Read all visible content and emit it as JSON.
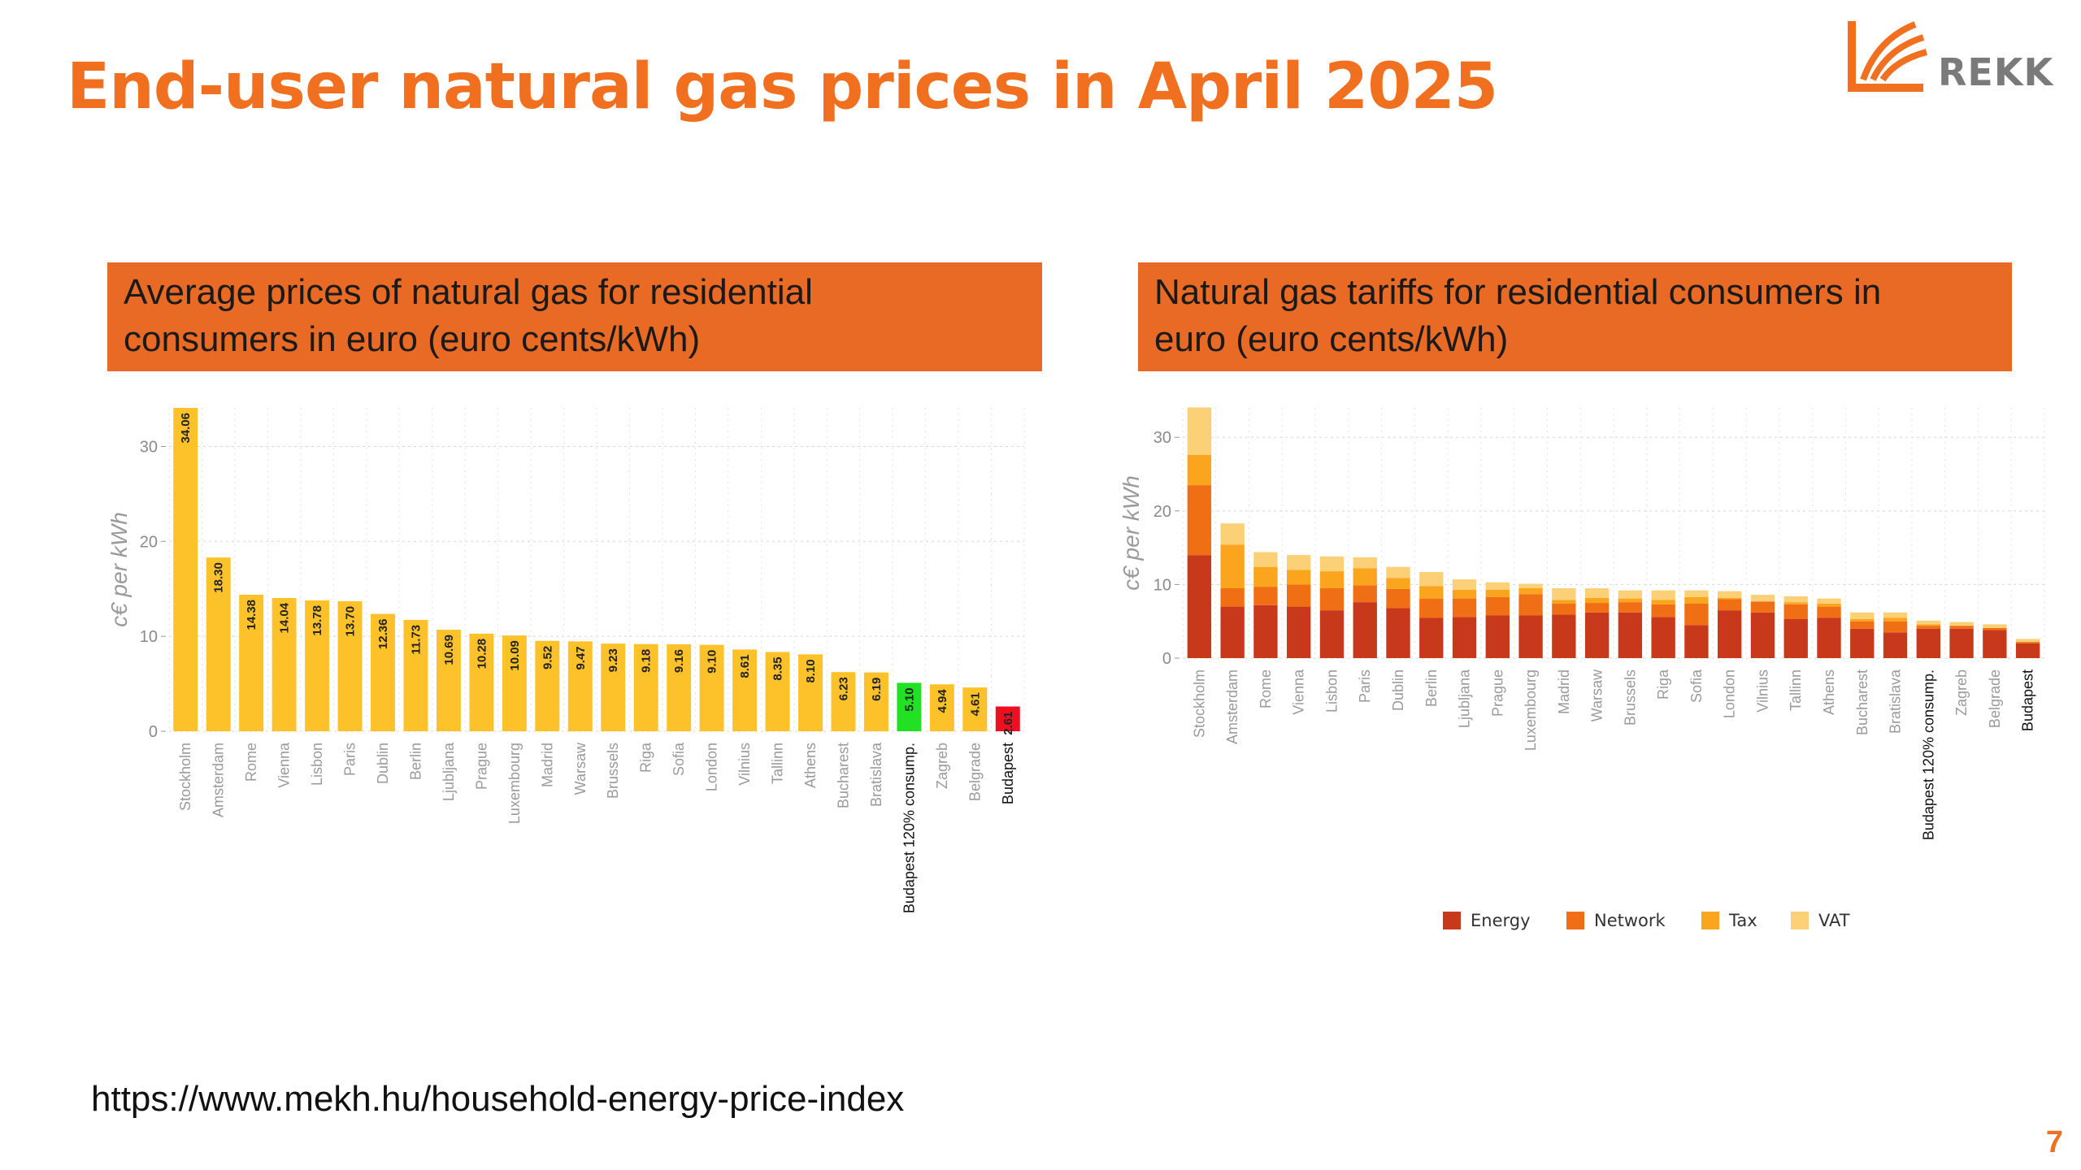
{
  "title": "End-user natural gas prices in April 2025",
  "logo": {
    "text": "REKK",
    "icon": "rekk-logo-icon"
  },
  "source_url": "https://www.mekh.hu/household-energy-price-index",
  "page_number": "7",
  "colors": {
    "title": "#f07020",
    "banner": "#e86a24",
    "bar_default": "#fdc22a",
    "bar_highlight_green": "#22e022",
    "bar_highlight_red": "#ee1020",
    "energy": "#c8381a",
    "network": "#f06e14",
    "tax": "#fba41e",
    "vat": "#fcd076"
  },
  "left_panel": {
    "header_line1": "Average prices of natural gas for residential",
    "header_line2": "consumers in euro (euro cents/kWh)"
  },
  "right_panel": {
    "header_line1": "Natural gas tariffs for residential consumers in",
    "header_line2": "euro (euro cents/kWh)"
  },
  "chart_data": [
    {
      "type": "bar",
      "ylabel": "c€ per kWh",
      "ylim": [
        0,
        34.06
      ],
      "yticks": [
        0,
        10,
        20,
        30
      ],
      "grid": true,
      "categories": [
        "Stockholm",
        "Amsterdam",
        "Rome",
        "Vienna",
        "Lisbon",
        "Paris",
        "Dublin",
        "Berlin",
        "Ljubljana",
        "Prague",
        "Luxembourg",
        "Madrid",
        "Warsaw",
        "Brussels",
        "Riga",
        "Sofia",
        "London",
        "Vilnius",
        "Tallinn",
        "Athens",
        "Bucharest",
        "Bratislava",
        "Budapest 120% consump.",
        "Zagreb",
        "Belgrade",
        "Budapest"
      ],
      "values": [
        34.06,
        18.3,
        14.38,
        14.04,
        13.78,
        13.7,
        12.36,
        11.73,
        10.69,
        10.28,
        10.09,
        9.52,
        9.47,
        9.23,
        9.18,
        9.16,
        9.1,
        8.61,
        8.35,
        8.1,
        6.23,
        6.19,
        5.1,
        4.94,
        4.61,
        2.61
      ],
      "value_labels": [
        "34.06",
        "18.30",
        "14.38",
        "14.04",
        "13.78",
        "13.70",
        "12.36",
        "11.73",
        "10.69",
        "10.28",
        "10.09",
        "9.52",
        "9.47",
        "9.23",
        "9.18",
        "9.16",
        "9.10",
        "8.61",
        "8.35",
        "8.10",
        "6.23",
        "6.19",
        "5.10",
        "4.94",
        "4.61",
        "2.61"
      ],
      "highlight": {
        "Budapest 120% consump.": "green",
        "Budapest": "red"
      }
    },
    {
      "type": "bar",
      "stacked": true,
      "ylabel": "c€ per kWh",
      "ylim": [
        0,
        34
      ],
      "yticks": [
        0,
        10,
        20,
        30
      ],
      "grid": true,
      "legend_position": "bottom",
      "categories": [
        "Stockholm",
        "Amsterdam",
        "Rome",
        "Vienna",
        "Lisbon",
        "Paris",
        "Dublin",
        "Berlin",
        "Ljubljana",
        "Prague",
        "Luxembourg",
        "Madrid",
        "Warsaw",
        "Brussels",
        "Riga",
        "Sofia",
        "London",
        "Vilnius",
        "Tallinn",
        "Athens",
        "Bucharest",
        "Bratislava",
        "Budapest 120% consump.",
        "Zagreb",
        "Belgrade",
        "Budapest"
      ],
      "series": [
        {
          "name": "Energy",
          "values": [
            14.0,
            7.0,
            7.2,
            7.0,
            6.5,
            7.6,
            6.8,
            5.5,
            5.6,
            5.8,
            5.8,
            5.9,
            6.2,
            6.2,
            5.6,
            4.5,
            6.5,
            6.2,
            5.3,
            5.5,
            4.0,
            3.5,
            4.0,
            4.0,
            3.8,
            2.0
          ]
        },
        {
          "name": "Network",
          "values": [
            9.5,
            2.5,
            2.5,
            3.0,
            3.0,
            2.3,
            2.6,
            2.6,
            2.5,
            2.5,
            2.9,
            1.5,
            1.3,
            1.4,
            1.7,
            2.9,
            1.5,
            1.5,
            2.0,
            1.5,
            1.0,
            1.5,
            0.4,
            0.4,
            0.3,
            0.2
          ]
        },
        {
          "name": "Tax",
          "values": [
            4.1,
            5.9,
            2.7,
            2.0,
            2.3,
            2.3,
            1.5,
            1.7,
            1.2,
            1.0,
            0.8,
            0.5,
            0.7,
            0.5,
            0.6,
            0.9,
            0.2,
            0.0,
            0.3,
            0.4,
            0.3,
            0.5,
            0.2,
            0.0,
            0.0,
            0.0
          ]
        },
        {
          "name": "VAT",
          "values": [
            6.46,
            2.9,
            2.0,
            2.0,
            2.0,
            1.5,
            1.5,
            1.9,
            1.4,
            1.0,
            0.6,
            1.6,
            1.3,
            1.1,
            1.3,
            0.9,
            0.9,
            0.9,
            0.8,
            0.7,
            0.9,
            0.7,
            0.5,
            0.5,
            0.5,
            0.4
          ]
        }
      ],
      "highlight": {
        "Budapest 120% consump.": "black",
        "Budapest": "black"
      }
    }
  ]
}
